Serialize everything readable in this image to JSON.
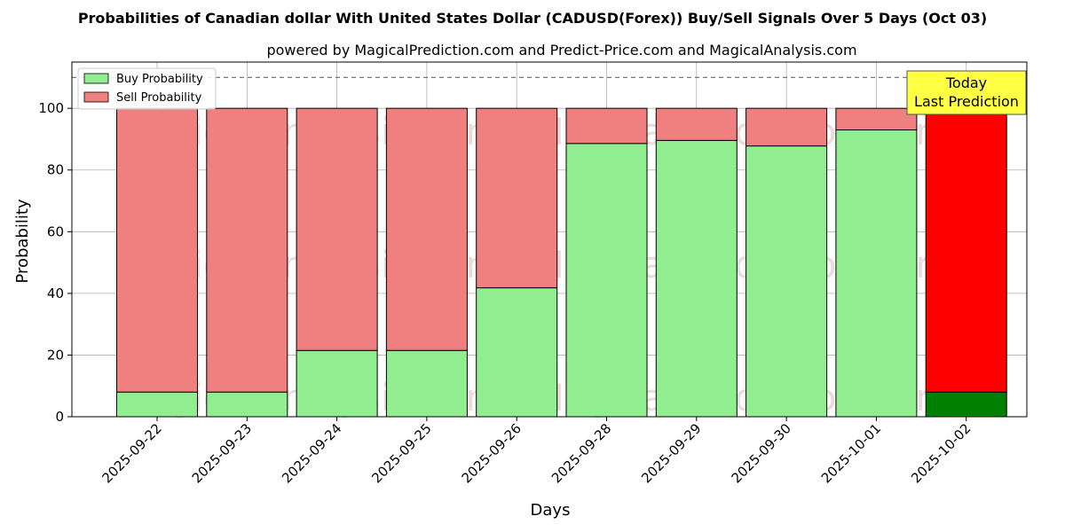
{
  "chart_data": {
    "type": "bar",
    "stacked": true,
    "title": "Probabilities of Canadian dollar With United States Dollar (CADUSD(Forex)) Buy/Sell Signals Over 5 Days (Oct 03)",
    "subtitle": "powered by MagicalPrediction.com and Predict-Price.com and MagicalAnalysis.com",
    "xlabel": "Days",
    "ylabel": "Probability",
    "ylim": [
      0,
      115
    ],
    "yticks": [
      0,
      20,
      40,
      60,
      80,
      100
    ],
    "grid": true,
    "legend_position": "top-left",
    "reference_line": 110,
    "categories": [
      "2025-09-22",
      "2025-09-23",
      "2025-09-24",
      "2025-09-25",
      "2025-09-26",
      "2025-09-28",
      "2025-09-29",
      "2025-09-30",
      "2025-10-01",
      "2025-10-02"
    ],
    "series": [
      {
        "name": "Buy Probability",
        "values": [
          8,
          8,
          21.5,
          21.5,
          41.8,
          88.6,
          89.6,
          87.8,
          93,
          8
        ],
        "color": "#90ee90",
        "highlight_color": "#008000"
      },
      {
        "name": "Sell Probability",
        "values": [
          92,
          92,
          78.5,
          78.5,
          58.2,
          11.4,
          10.4,
          12.2,
          7,
          92
        ],
        "color": "#f08080",
        "highlight_color": "#ff0000"
      }
    ],
    "highlight_index": 9,
    "annotation": {
      "line1": "Today",
      "line2": "Last Prediction",
      "color": "#ffff44"
    },
    "watermarks": [
      "MagicalAnalysis.com",
      "MagicalPrediction.com"
    ]
  }
}
